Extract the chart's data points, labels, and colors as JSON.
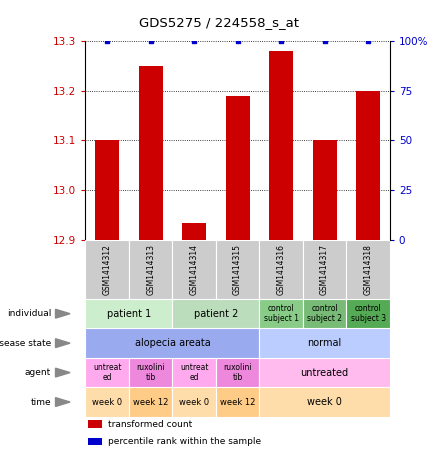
{
  "title": "GDS5275 / 224558_s_at",
  "samples": [
    "GSM1414312",
    "GSM1414313",
    "GSM1414314",
    "GSM1414315",
    "GSM1414316",
    "GSM1414317",
    "GSM1414318"
  ],
  "bar_values": [
    13.1,
    13.25,
    12.935,
    13.19,
    13.28,
    13.1,
    13.2
  ],
  "percentile_values": [
    100,
    100,
    100,
    100,
    100,
    100,
    100
  ],
  "ylim_left": [
    12.9,
    13.3
  ],
  "ylim_right": [
    0,
    100
  ],
  "yticks_left": [
    12.9,
    13.0,
    13.1,
    13.2,
    13.3
  ],
  "yticks_right": [
    0,
    25,
    50,
    75,
    100
  ],
  "bar_color": "#cc0000",
  "dot_color": "#0000cc",
  "sample_bg_color": "#cccccc",
  "rows": [
    {
      "label": "individual",
      "cells": [
        {
          "text": "patient 1",
          "colspan": 2,
          "color": "#cceecc"
        },
        {
          "text": "patient 2",
          "colspan": 2,
          "color": "#bbddbb"
        },
        {
          "text": "control\nsubject 1",
          "colspan": 1,
          "color": "#88cc88"
        },
        {
          "text": "control\nsubject 2",
          "colspan": 1,
          "color": "#77bb77"
        },
        {
          "text": "control\nsubject 3",
          "colspan": 1,
          "color": "#55aa55"
        }
      ]
    },
    {
      "label": "disease state",
      "cells": [
        {
          "text": "alopecia areata",
          "colspan": 4,
          "color": "#99aaee"
        },
        {
          "text": "normal",
          "colspan": 3,
          "color": "#bbccff"
        }
      ]
    },
    {
      "label": "agent",
      "cells": [
        {
          "text": "untreat\ned",
          "colspan": 1,
          "color": "#ffaaee"
        },
        {
          "text": "ruxolini\ntib",
          "colspan": 1,
          "color": "#ee88dd"
        },
        {
          "text": "untreat\ned",
          "colspan": 1,
          "color": "#ffaaee"
        },
        {
          "text": "ruxolini\ntib",
          "colspan": 1,
          "color": "#ee88dd"
        },
        {
          "text": "untreated",
          "colspan": 3,
          "color": "#ffbbee"
        }
      ]
    },
    {
      "label": "time",
      "cells": [
        {
          "text": "week 0",
          "colspan": 1,
          "color": "#ffddaa"
        },
        {
          "text": "week 12",
          "colspan": 1,
          "color": "#ffcc88"
        },
        {
          "text": "week 0",
          "colspan": 1,
          "color": "#ffddaa"
        },
        {
          "text": "week 12",
          "colspan": 1,
          "color": "#ffcc88"
        },
        {
          "text": "week 0",
          "colspan": 3,
          "color": "#ffddaa"
        }
      ]
    }
  ],
  "legend": [
    {
      "color": "#cc0000",
      "label": "transformed count"
    },
    {
      "color": "#0000cc",
      "label": "percentile rank within the sample"
    }
  ]
}
